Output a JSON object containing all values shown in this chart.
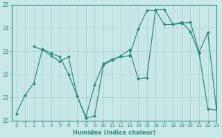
{
  "line1_x": [
    0,
    1,
    2,
    3,
    4,
    5,
    6,
    7,
    8,
    9,
    10,
    11,
    12,
    13,
    14,
    15,
    16,
    17,
    18,
    19,
    20,
    21,
    22,
    23
  ],
  "line1_y": [
    20.3,
    21.1,
    21.6,
    23.1,
    22.9,
    22.75,
    22.0,
    21.05,
    20.1,
    20.2,
    22.4,
    22.6,
    22.8,
    23.05,
    21.8,
    21.85,
    24.8,
    24.8,
    24.15,
    24.25,
    23.85,
    22.9,
    20.5,
    20.45
  ],
  "line2_x": [
    2,
    3,
    4,
    5,
    6,
    7,
    8,
    9,
    10,
    11,
    12,
    13,
    14,
    15,
    16,
    17,
    18,
    19,
    20,
    21,
    22,
    23
  ],
  "line2_y": [
    23.2,
    23.05,
    22.8,
    22.55,
    22.75,
    21.05,
    20.15,
    21.55,
    22.45,
    22.65,
    22.75,
    22.8,
    23.95,
    24.75,
    24.75,
    24.15,
    24.15,
    24.2,
    24.25,
    22.95,
    23.8,
    20.45
  ],
  "color": "#2e8b7a",
  "bg_color": "#c8e8e8",
  "grid_color": "#a8cccc",
  "xlabel": "Humidex (Indice chaleur)",
  "ylim": [
    20,
    25
  ],
  "xlim": [
    -0.5,
    23
  ],
  "yticks": [
    20,
    21,
    22,
    23,
    24,
    25
  ],
  "xticks": [
    0,
    1,
    2,
    3,
    4,
    5,
    6,
    7,
    8,
    9,
    10,
    11,
    12,
    13,
    14,
    15,
    16,
    17,
    18,
    19,
    20,
    21,
    22,
    23
  ]
}
